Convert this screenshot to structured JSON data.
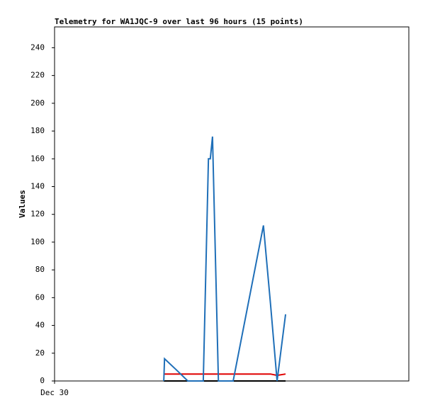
{
  "chart_data": {
    "type": "line",
    "title": "Telemetry for WA1JQC-9 over last 96 hours (15 points)",
    "y_label": "Values",
    "x": [
      29.6,
      29.8,
      33.0,
      36.1,
      40.3,
      41.7,
      42.2,
      42.8,
      44.4,
      48.4,
      52.5,
      56.6,
      58.5,
      60.3,
      62.6
    ],
    "series": [
      {
        "color": "#000000",
        "values": [
          0,
          0,
          0,
          0,
          0,
          0,
          0,
          0,
          0,
          0,
          0,
          0,
          0,
          0,
          0
        ]
      },
      {
        "color": "#e00000",
        "values": [
          5,
          5,
          5,
          5,
          5,
          5,
          5,
          5,
          5,
          5,
          5,
          5,
          5,
          4,
          5
        ]
      },
      {
        "color": "#1f6fb8",
        "values": [
          0,
          16,
          8,
          0,
          0,
          160,
          160,
          176,
          0,
          0,
          56,
          112,
          56,
          0,
          48
        ]
      }
    ],
    "xlim": [
      0,
      96
    ],
    "xticks": [
      {
        "value": 0,
        "label": "Dec 30"
      }
    ],
    "ylim": [
      0,
      255
    ],
    "yticks": [
      0,
      20,
      40,
      60,
      80,
      100,
      120,
      140,
      160,
      180,
      200,
      220,
      240
    ],
    "grid": false
  }
}
